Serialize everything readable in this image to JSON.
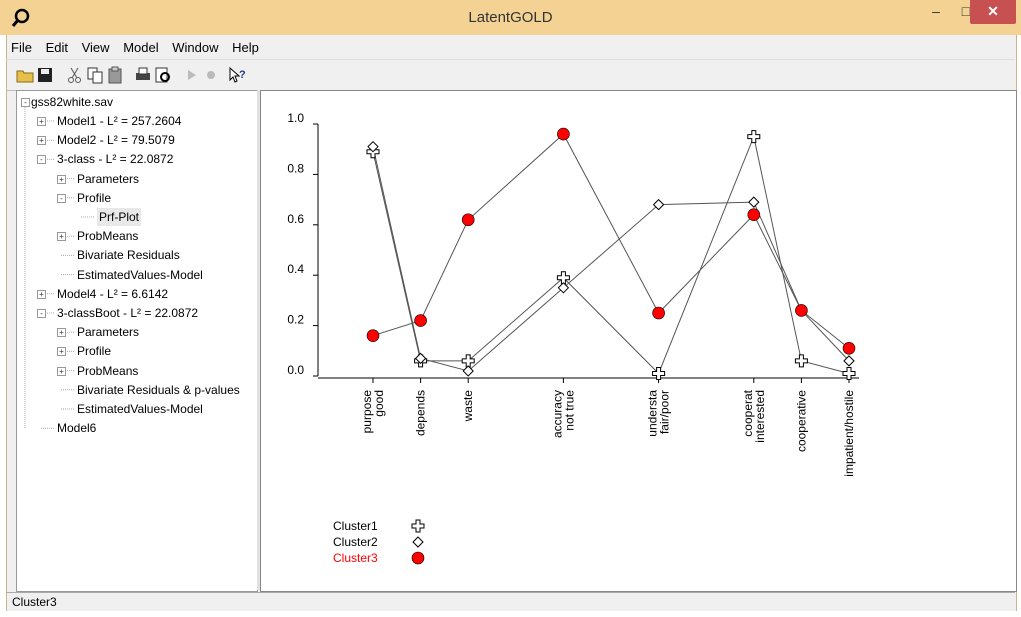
{
  "window": {
    "title": "LatentGOLD"
  },
  "menu": [
    "File",
    "Edit",
    "View",
    "Model",
    "Window",
    "Help"
  ],
  "tree": {
    "root": "gss82white.sav",
    "items": [
      {
        "label": "Model1 - L² = 257.2604",
        "level": 1,
        "exp": "+"
      },
      {
        "label": "Model2 - L² = 79.5079",
        "level": 1,
        "exp": "+"
      },
      {
        "label": "3-class - L² = 22.0872",
        "level": 1,
        "exp": "-"
      },
      {
        "label": "Parameters",
        "level": 2,
        "exp": "+"
      },
      {
        "label": "Profile",
        "level": 2,
        "exp": "-"
      },
      {
        "label": "Prf-Plot",
        "level": 3,
        "exp": "",
        "selected": true
      },
      {
        "label": "ProbMeans",
        "level": 2,
        "exp": "+"
      },
      {
        "label": "Bivariate Residuals",
        "level": 2,
        "exp": ""
      },
      {
        "label": "EstimatedValues-Model",
        "level": 2,
        "exp": ""
      },
      {
        "label": "Model4 - L² = 6.6142",
        "level": 1,
        "exp": "+"
      },
      {
        "label": "3-classBoot - L² = 22.0872",
        "level": 1,
        "exp": "-"
      },
      {
        "label": "Parameters",
        "level": 2,
        "exp": "+"
      },
      {
        "label": "Profile",
        "level": 2,
        "exp": "+"
      },
      {
        "label": "ProbMeans",
        "level": 2,
        "exp": "+"
      },
      {
        "label": "Bivariate Residuals & p-values",
        "level": 2,
        "exp": ""
      },
      {
        "label": "EstimatedValues-Model",
        "level": 2,
        "exp": ""
      },
      {
        "label": "Model6",
        "level": 1,
        "exp": ""
      }
    ]
  },
  "chart_data": {
    "type": "line",
    "categories": [
      [
        "purpose",
        "good"
      ],
      [
        "depends"
      ],
      [
        "waste"
      ],
      [
        "accuracy",
        "not true"
      ],
      [
        "understa",
        "fair/poor"
      ],
      [
        "cooperat",
        "interested"
      ],
      [
        "cooperative"
      ],
      [
        "impatient/hostile"
      ]
    ],
    "x": [
      0,
      1,
      2,
      4,
      6,
      8,
      9,
      10
    ],
    "yticks": [
      "0.0",
      "0.2",
      "0.4",
      "0.6",
      "0.8",
      "1.0"
    ],
    "ylim": [
      0,
      1
    ],
    "series": [
      {
        "name": "Cluster1",
        "marker": "plus",
        "values": [
          0.89,
          0.06,
          0.06,
          0.39,
          0.01,
          0.95,
          0.06,
          0.01
        ]
      },
      {
        "name": "Cluster2",
        "marker": "diamond",
        "values": [
          0.91,
          0.07,
          0.02,
          0.35,
          0.68,
          0.69,
          0.26,
          0.06
        ]
      },
      {
        "name": "Cluster3",
        "marker": "circle",
        "values": [
          0.16,
          0.22,
          0.62,
          0.96,
          0.25,
          0.64,
          0.26,
          0.11
        ]
      }
    ],
    "legend_highlight": "Cluster3",
    "highlight_color": "#ff0000"
  },
  "status": {
    "text": "Cluster3"
  }
}
